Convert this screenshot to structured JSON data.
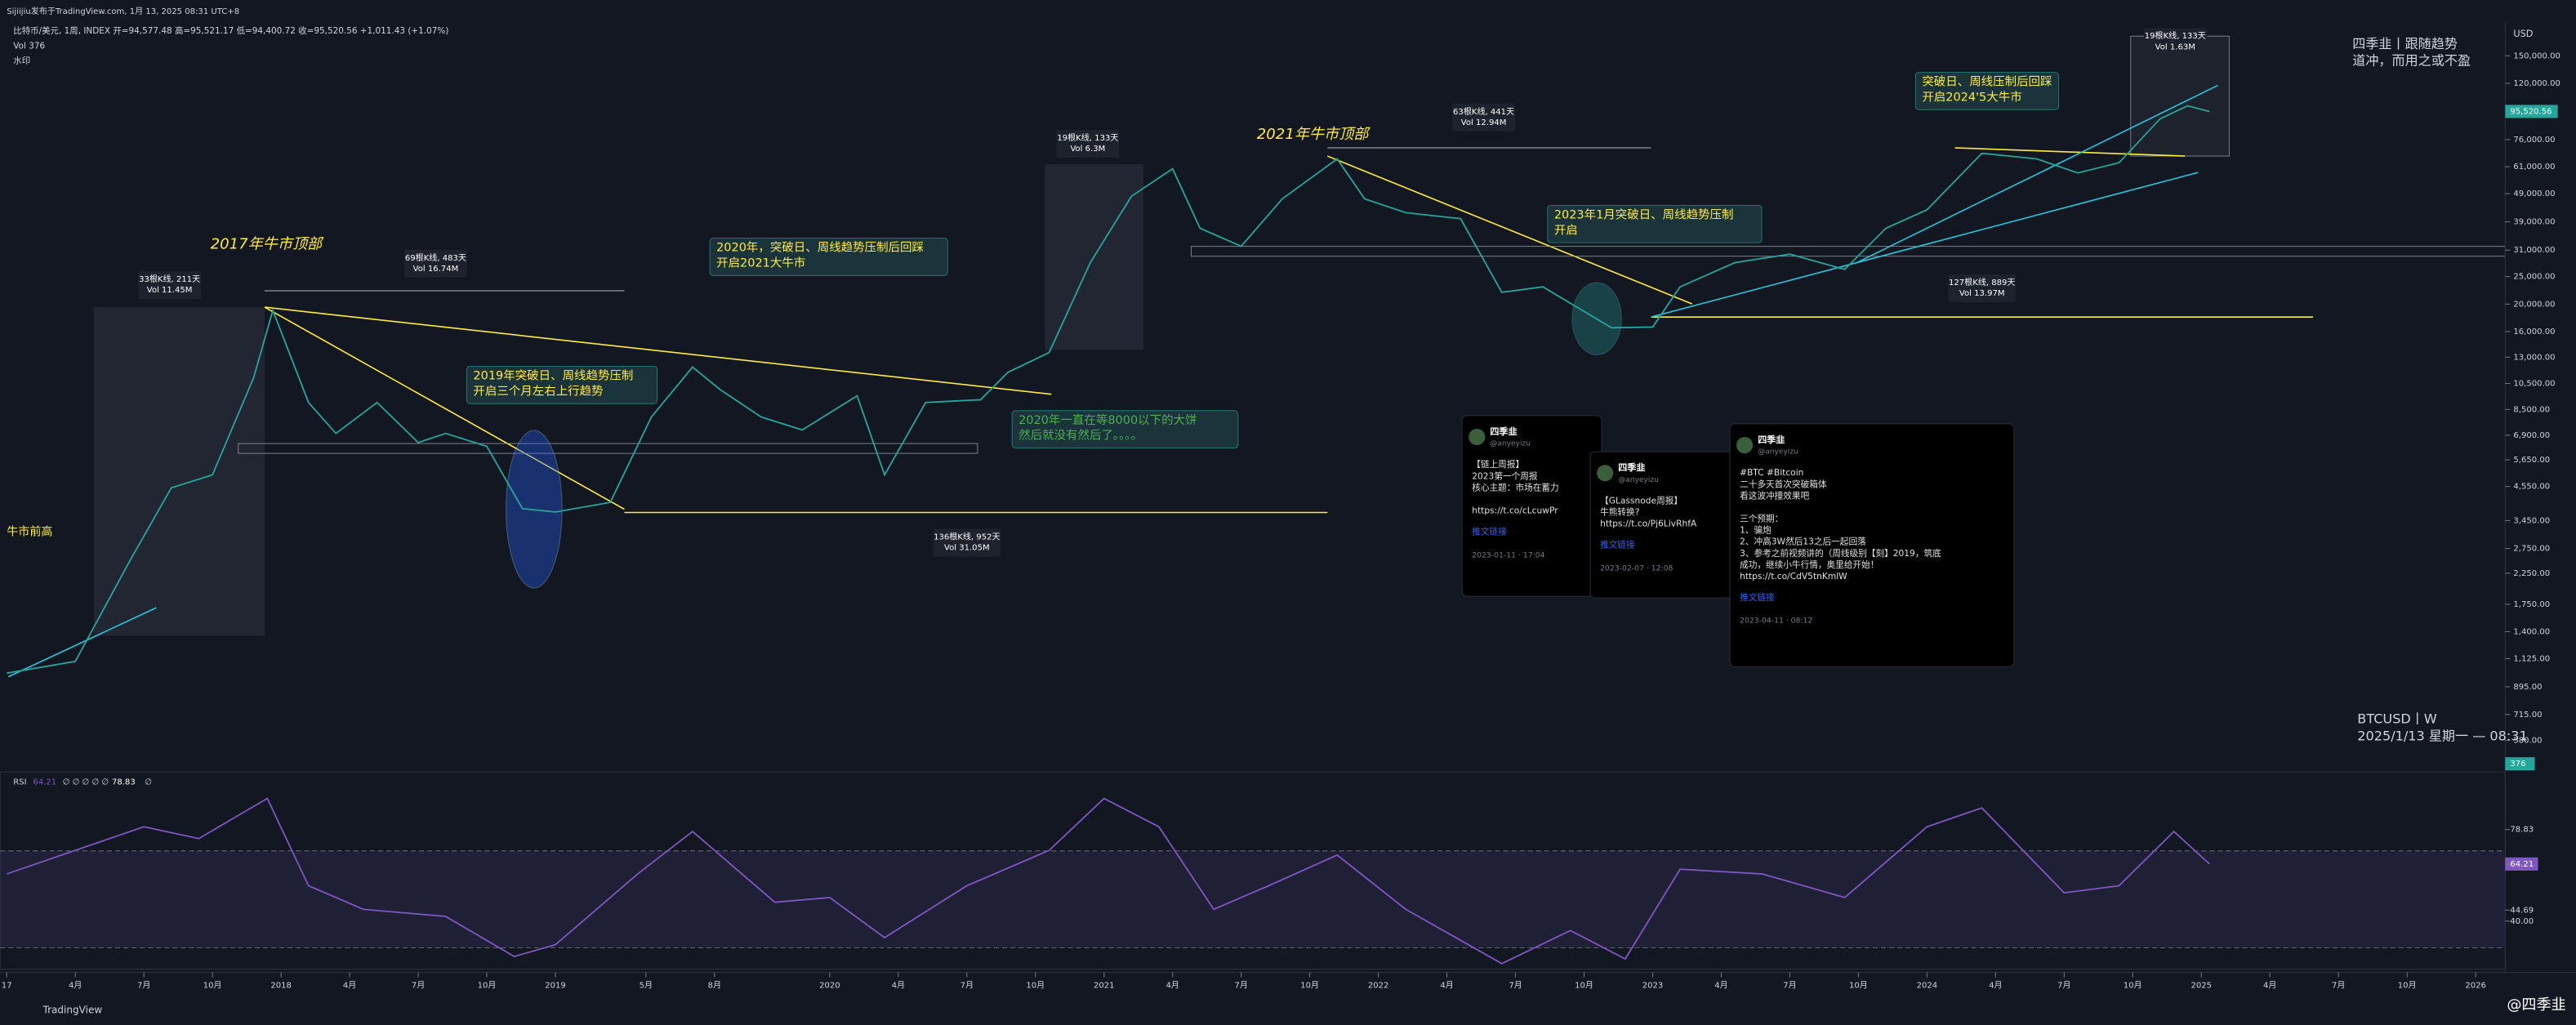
{
  "header": {
    "publisher": "Sijiijiu发布于TradingView.com, 1月 13, 2025 08:31 UTC+8",
    "symbol": "比特币/美元, 1周, INDEX 开=94,577.48 高=95,521.17 低=94,400.72 收=95,520.56 +1,011.43 (+1.07%)",
    "volume": "Vol 376",
    "watermark": "水印"
  },
  "price_axis": {
    "currency": "USD",
    "log": true,
    "ticks": [
      {
        "value": 150000,
        "label": "150,000.00"
      },
      {
        "value": 120000,
        "label": "120,000.00"
      },
      {
        "value": 76000,
        "label": "76,000.00"
      },
      {
        "value": 61000,
        "label": "61,000.00"
      },
      {
        "value": 49000,
        "label": "49,000.00"
      },
      {
        "value": 39000,
        "label": "39,000.00"
      },
      {
        "value": 31000,
        "label": "31,000.00"
      },
      {
        "value": 25000,
        "label": "25,000.00"
      },
      {
        "value": 20000,
        "label": "20,000.00"
      },
      {
        "value": 16000,
        "label": "16,000.00"
      },
      {
        "value": 13000,
        "label": "13,000.00"
      },
      {
        "value": 10500,
        "label": "10,500.00"
      },
      {
        "value": 8500,
        "label": "8,500.00"
      },
      {
        "value": 6900,
        "label": "6,900.00"
      },
      {
        "value": 5650,
        "label": "5,650.00"
      },
      {
        "value": 4550,
        "label": "4,550.00"
      },
      {
        "value": 3450,
        "label": "3,450.00"
      },
      {
        "value": 2750,
        "label": "2,750.00"
      },
      {
        "value": 2250,
        "label": "2,250.00"
      },
      {
        "value": 1750,
        "label": "1,750.00"
      },
      {
        "value": 1400,
        "label": "1,400.00"
      },
      {
        "value": 1125,
        "label": "1,125.00"
      },
      {
        "value": 895,
        "label": "895.00"
      },
      {
        "value": 715,
        "label": "715.00"
      },
      {
        "value": 580,
        "label": "580.00"
      }
    ],
    "last_price": {
      "value": 95520.56,
      "label": "95,520.56"
    },
    "last_volume": 376
  },
  "time_axis": {
    "ticks": [
      {
        "value": 2017,
        "label": "17"
      },
      {
        "value": 2017.25,
        "label": "4月"
      },
      {
        "value": 2017.5,
        "label": "7月"
      },
      {
        "value": 2017.75,
        "label": "10月"
      },
      2018,
      {
        "value": 2018.25,
        "label": "4月"
      },
      {
        "value": 2018.5,
        "label": "7月"
      },
      {
        "value": 2018.75,
        "label": "10月"
      },
      2019,
      {
        "value": 2019.33,
        "label": "5月"
      },
      {
        "value": 2019.58,
        "label": "8月"
      },
      2020,
      {
        "value": 2020.25,
        "label": "4月"
      },
      {
        "value": 2020.5,
        "label": "7月"
      },
      {
        "value": 2020.75,
        "label": "10月"
      },
      2021,
      {
        "value": 2021.25,
        "label": "4月"
      },
      {
        "value": 2021.5,
        "label": "7月"
      },
      {
        "value": 2021.75,
        "label": "10月"
      },
      2022,
      {
        "value": 2022.25,
        "label": "4月"
      },
      {
        "value": 2022.5,
        "label": "7月"
      },
      {
        "value": 2022.75,
        "label": "10月"
      },
      2023,
      {
        "value": 2023.25,
        "label": "4月"
      },
      {
        "value": 2023.5,
        "label": "7月"
      },
      {
        "value": 2023.75,
        "label": "10月"
      },
      2024,
      {
        "value": 2024.25,
        "label": "4月"
      },
      {
        "value": 2024.5,
        "label": "7月"
      },
      {
        "value": 2024.75,
        "label": "10月"
      },
      2025,
      {
        "value": 2025.25,
        "label": "4月"
      },
      {
        "value": 2025.5,
        "label": "7月"
      },
      {
        "value": 2025.75,
        "label": "10月"
      },
      2026
    ]
  },
  "price_line": {
    "x": [
      2017.0,
      2017.25,
      2017.45,
      2017.6,
      2017.75,
      2017.9,
      2017.97,
      2018.1,
      2018.2,
      2018.35,
      2018.5,
      2018.6,
      2018.75,
      2018.88,
      2019.0,
      2019.2,
      2019.35,
      2019.5,
      2019.6,
      2019.75,
      2019.9,
      2020.1,
      2020.2,
      2020.35,
      2020.55,
      2020.65,
      2020.8,
      2020.95,
      2021.1,
      2021.25,
      2021.35,
      2021.5,
      2021.65,
      2021.85,
      2021.95,
      2022.1,
      2022.3,
      2022.45,
      2022.6,
      2022.85,
      2023.0,
      2023.1,
      2023.3,
      2023.5,
      2023.7,
      2023.85,
      2024.0,
      2024.2,
      2024.4,
      2024.55,
      2024.7,
      2024.85,
      2024.95,
      2025.03
    ],
    "values": [
      1000,
      1100,
      2500,
      4500,
      5000,
      11000,
      19000,
      9000,
      7000,
      9000,
      6500,
      7000,
      6300,
      3800,
      3700,
      4000,
      8000,
      12000,
      10000,
      8000,
      7200,
      9500,
      5000,
      9000,
      9200,
      11500,
      13500,
      28000,
      48000,
      60000,
      37000,
      32000,
      47000,
      65000,
      47000,
      42000,
      40000,
      22000,
      23000,
      16500,
      16600,
      23000,
      28000,
      30000,
      26500,
      37000,
      43000,
      68000,
      65000,
      58000,
      63000,
      90000,
      100000,
      95520.56
    ]
  },
  "rsi": {
    "label": "RSI",
    "current_text": "64.21",
    "params": "∅ ∅ ∅ ∅ ∅",
    "max_text": "78.83",
    "null_text": "∅",
    "ticks": [
      78.83,
      64.21,
      44.69,
      {
        "value": 40,
        "label": "40.00"
      }
    ],
    "x": [
      2017.0,
      2017.3,
      2017.5,
      2017.7,
      2017.95,
      2018.1,
      2018.3,
      2018.6,
      2018.85,
      2019.0,
      2019.3,
      2019.5,
      2019.8,
      2020.0,
      2020.2,
      2020.5,
      2020.8,
      2021.0,
      2021.2,
      2021.4,
      2021.6,
      2021.85,
      2022.1,
      2022.45,
      2022.7,
      2022.9,
      2023.1,
      2023.4,
      2023.7,
      2024.0,
      2024.2,
      2024.5,
      2024.7,
      2024.9,
      2025.03
    ],
    "values": [
      60,
      72,
      80,
      75,
      92,
      55,
      45,
      42,
      25,
      30,
      60,
      78,
      48,
      50,
      33,
      55,
      70,
      92,
      80,
      45,
      55,
      68,
      45,
      22,
      36,
      24,
      62,
      60,
      50,
      80,
      88,
      52,
      55,
      78,
      64.21
    ]
  },
  "annotations": [
    {
      "lines": [
        "2017年牛市顶部"
      ],
      "style": "title"
    },
    {
      "lines": [
        "33根K线, 211天",
        "Vol 11.45M"
      ],
      "style": "stat"
    },
    {
      "lines": [
        "69根K线, 483天",
        "Vol 16.74M"
      ],
      "style": "stat"
    },
    {
      "lines": [
        "2020年，突破日、周线趋势压制后回踩",
        "开启2021大牛市"
      ],
      "style": "note"
    },
    {
      "lines": [
        "19根K线, 133天",
        "Vol 6.3M"
      ],
      "style": "stat"
    },
    {
      "lines": [
        "2021年牛市顶部"
      ],
      "style": "title"
    },
    {
      "lines": [
        "63根K线, 441天",
        "Vol 12.94M"
      ],
      "style": "stat"
    },
    {
      "lines": [
        "2023年1月突破日、周线趋势压制",
        "开启"
      ],
      "style": "note"
    },
    {
      "lines": [
        "19根K线, 133天",
        "Vol 1.63M"
      ],
      "style": "stat"
    },
    {
      "lines": [
        "突破日、周线压制后回踩",
        "开启2024'5大牛市"
      ],
      "style": "note"
    },
    {
      "lines": [
        "2019年突破日、周线趋势压制",
        "开启三个月左右上行趋势"
      ],
      "style": "note"
    },
    {
      "lines": [
        "2020年一直在等8000以下的大饼",
        "然后就没有然后了。。。。"
      ],
      "style": "green"
    },
    {
      "lines": [
        "136根K线, 952天",
        "Vol 31.05M"
      ],
      "style": "stat"
    },
    {
      "lines": [
        "127根K线, 889天",
        "Vol 13.97M"
      ],
      "style": "stat"
    },
    {
      "lines": [
        "牛市前高"
      ],
      "style": "small"
    },
    {
      "lines": [
        "四季韭丨跟随趋势",
        "道冲，而用之或不盈"
      ],
      "style": "brand"
    },
    {
      "lines": [
        "BTCUSD丨W",
        "2025/1/13 星期一 — 08:31"
      ],
      "style": "brand"
    }
  ],
  "tweets": [
    {
      "name": "四季韭",
      "handle": "@anyeyizu",
      "lines": [
        "【链上周报】",
        "2023第一个周报",
        "核心主题：市场在蓄力",
        "",
        "https://t.co/cLcuwPr"
      ],
      "link": "推文链接",
      "time": "2023-01-11 · 17:04"
    },
    {
      "name": "四季韭",
      "handle": "@anyeyizu",
      "lines": [
        "【GLassnode周报】",
        "牛熊转换?",
        "https://t.co/Pj6LivRhfA"
      ],
      "link": "推文链接",
      "time": "2023-02-07 · 12:08"
    },
    {
      "name": "四季韭",
      "handle": "@anyeyizu",
      "lines": [
        "#BTC #Bitcoin",
        "二十多天首次突破箱体",
        "看这波冲撞效果吧",
        "",
        "三个预期：",
        "1、骗炮",
        "2、冲高3W然后13之后一起回落",
        "3、参考之前视频讲的（周线级别【刻】2019，筑底",
        "成功，继续小牛行情，奥里给开始！",
        "https://t.co/CdV5tnKmlW"
      ],
      "link": "推文链接",
      "time": "2023-04-11 · 08:12"
    }
  ],
  "footer": {
    "brand": "TradingView",
    "author": "@四季韭"
  }
}
